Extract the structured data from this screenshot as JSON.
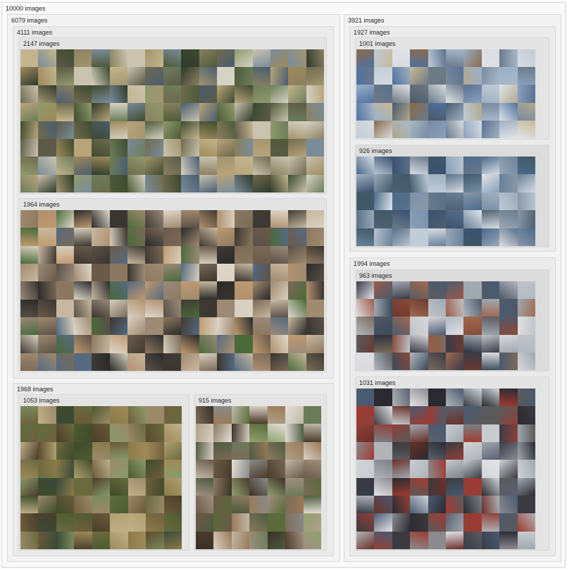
{
  "root": {
    "label": "10000 images",
    "left": {
      "label": "6079 images",
      "top": {
        "label": "4111 images",
        "birds": {
          "label": "2147 images",
          "theme": "birds"
        },
        "dogs_cats": {
          "label": "1964 images",
          "theme": "pets"
        }
      },
      "bottom": {
        "label": "1968 images",
        "deer": {
          "label": "1053 images",
          "theme": "deer"
        },
        "horses": {
          "label": "915 images",
          "theme": "horses"
        }
      }
    },
    "right": {
      "label": "3921 images",
      "top": {
        "label": "1927 images",
        "airplanes": {
          "label": "1001 images",
          "theme": "planes"
        },
        "ships": {
          "label": "926 images",
          "theme": "ships"
        }
      },
      "bottom": {
        "label": "1994 images",
        "trucks": {
          "label": "963 images",
          "theme": "trucks"
        },
        "cars": {
          "label": "1031 images",
          "theme": "cars"
        }
      }
    }
  },
  "themes": {
    "birds": [
      "#6f6a4e",
      "#8a8060",
      "#4d5a38",
      "#a39570",
      "#c9c3b0",
      "#3e4a30",
      "#7a8c9a",
      "#b9a47a",
      "#5c5a48",
      "#8f9a6b",
      "#d6d2c4",
      "#2f3a2a",
      "#9e8a5a",
      "#6d7d5b",
      "#c4b58e",
      "#4a5d70"
    ],
    "pets": [
      "#7a6a58",
      "#a08a70",
      "#3a3530",
      "#c8b8a0",
      "#5a5048",
      "#d8d0c0",
      "#8c7860",
      "#4a6a3a",
      "#b09070",
      "#2a2a2a",
      "#e0d8cc",
      "#6b5a4a",
      "#9a8a7a",
      "#c09a70",
      "#556a80",
      "#403a34"
    ],
    "deer": [
      "#6a6a3e",
      "#8a7a4a",
      "#4e5a30",
      "#a08a5a",
      "#5a4a30",
      "#7a8a5a",
      "#3e4a2a",
      "#b0a070",
      "#6a5a3a",
      "#8a9a6a",
      "#4a3e2a",
      "#9a8a6a",
      "#5e6e3e",
      "#c0b08a",
      "#70603e",
      "#3a4a3a"
    ],
    "horses": [
      "#6a5a48",
      "#8a7a60",
      "#4a3a2a",
      "#a09080",
      "#c0b8a8",
      "#5a6a3a",
      "#7a6a58",
      "#d8d0c4",
      "#3a3028",
      "#90a070",
      "#b0a088",
      "#6a7a5a",
      "#8a8a8a",
      "#4e5a40",
      "#9a7a58",
      "#e4e0d8"
    ],
    "planes": [
      "#8aa0c0",
      "#c0ccd8",
      "#5a7090",
      "#a0b0c0",
      "#d8dce0",
      "#6a7a8a",
      "#b0a890",
      "#4a5a6a",
      "#9ab0c8",
      "#e0e4e8",
      "#7a8aa0",
      "#c8b898",
      "#5070a0",
      "#a8b8c8",
      "#8a6a4a",
      "#707880"
    ],
    "ships": [
      "#4a6a8a",
      "#7a90a8",
      "#a0b0c0",
      "#3a5070",
      "#c0ccd8",
      "#6a7a8a",
      "#8aa0b8",
      "#d8dce4",
      "#506070",
      "#9aa8b8",
      "#405868",
      "#b8c4d0",
      "#6a8098",
      "#e0e4ea",
      "#5a7088",
      "#8a98a8"
    ],
    "trucks": [
      "#8a4a3a",
      "#5a5a60",
      "#a0a8b0",
      "#3a3a48",
      "#c0c4c8",
      "#6a3a30",
      "#4a5a70",
      "#d8d8dc",
      "#7a6a5a",
      "#2a3040",
      "#9a5a48",
      "#b0b8c0",
      "#505868",
      "#a06a50",
      "#3a4a5a",
      "#e0e0e4"
    ],
    "cars": [
      "#a03a30",
      "#5a6070",
      "#c8ccd0",
      "#3a3a40",
      "#8a8a90",
      "#d0d4d8",
      "#6a3028",
      "#4a5a70",
      "#b0b4b8",
      "#2a2a30",
      "#7a8088",
      "#e4e4e8",
      "#904038",
      "#5a5a5a",
      "#a0a8b0",
      "#383c48"
    ]
  }
}
